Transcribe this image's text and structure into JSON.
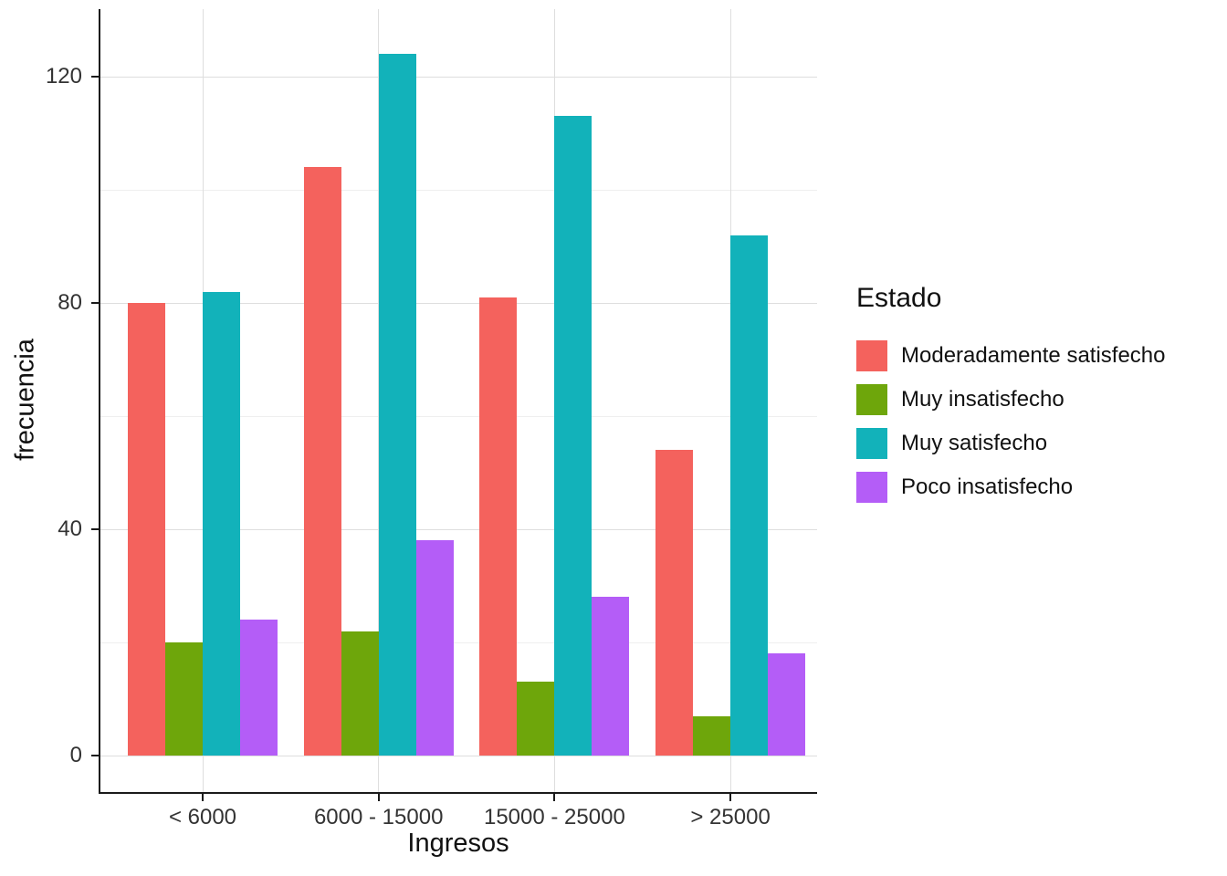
{
  "chart_data": {
    "type": "bar",
    "title": "",
    "xlabel": "Ingresos",
    "ylabel": "frecuencia",
    "legend_title": "Estado",
    "legend_position": "right",
    "grid": true,
    "categories": [
      "< 6000",
      "6000 - 15000",
      "15000 - 25000",
      "> 25000"
    ],
    "series": [
      {
        "name": "Moderadamente satisfecho",
        "color": "#f4625d",
        "values": [
          80,
          104,
          81,
          54
        ]
      },
      {
        "name": "Muy insatisfecho",
        "color": "#6ea60b",
        "values": [
          20,
          22,
          13,
          7
        ]
      },
      {
        "name": "Muy satisfecho",
        "color": "#12b2ba",
        "values": [
          82,
          124,
          113,
          92
        ]
      },
      {
        "name": "Poco insatisfecho",
        "color": "#b45df7",
        "values": [
          24,
          38,
          28,
          18
        ]
      }
    ],
    "ylim": [
      0,
      132
    ],
    "yticks": [
      0,
      40,
      80,
      120
    ]
  }
}
